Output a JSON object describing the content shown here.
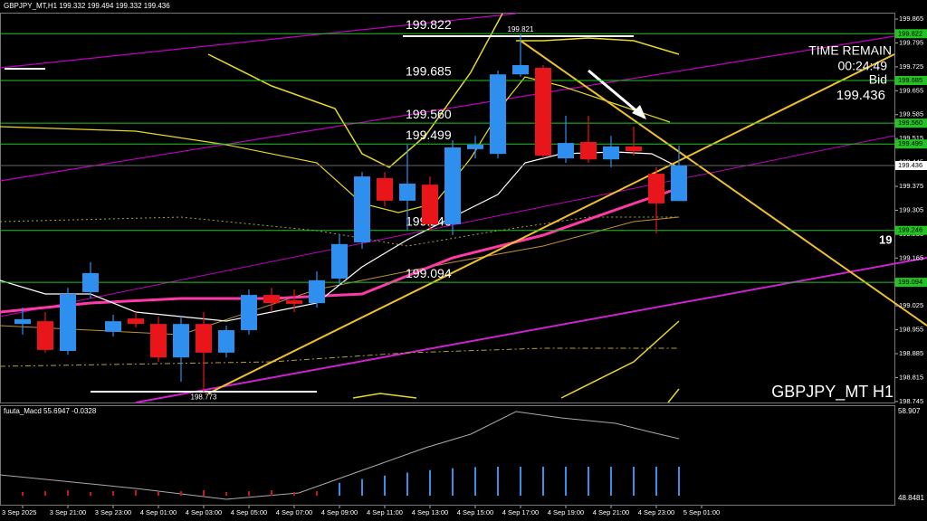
{
  "chart_data": {
    "type": "candlestick",
    "title": "GBPJPY_MT,H1 199.332 199.494 199.332 199.436",
    "watermark": "GBPJPY_MT H1",
    "time_remain_label": "TIME REMAIN",
    "time_remain": "00:24:49",
    "bid_label": "Bid",
    "bid": "199.436",
    "edge_label": "19",
    "high_label": "199.821",
    "low_label": "198.773",
    "indicator_title": "fuuta_Macd 55.6947 -0.0328",
    "indicator_top": "58.907",
    "indicator_bottom": "48.8481",
    "up_color": "#2f8fef",
    "down_color": "#e8151b",
    "level_color": "#22c322",
    "categories": [
      "3 Sep 2025",
      null,
      "3 Sep 21:00",
      null,
      "3 Sep 23:00",
      null,
      "4 Sep 01:00",
      null,
      "4 Sep 03:00",
      null,
      "4 Sep 05:00",
      null,
      "4 Sep 07:00",
      null,
      "4 Sep 09:00",
      null,
      "4 Sep 11:00",
      null,
      "4 Sep 13:00",
      null,
      "4 Sep 15:00",
      null,
      "4 Sep 17:00",
      null,
      "4 Sep 19:00",
      null,
      "4 Sep 21:00",
      null,
      "4 Sep 23:00",
      null,
      "5 Sep 01:00"
    ],
    "open": [
      198.972,
      198.98,
      198.893,
      199.065,
      198.949,
      198.988,
      198.972,
      198.874,
      198.972,
      198.888,
      198.954,
      199.057,
      199.041,
      199.033,
      199.105,
      199.211,
      199.399,
      199.333,
      199.38,
      199.264,
      199.484,
      199.47,
      199.703,
      199.722,
      199.457,
      199.505,
      199.454,
      199.492,
      199.412,
      199.332,
      null
    ],
    "high": [
      199.02,
      199.007,
      199.078,
      199.153,
      198.999,
      199.007,
      198.994,
      198.994,
      199.007,
      198.967,
      199.073,
      199.078,
      199.073,
      199.126,
      199.232,
      199.417,
      199.417,
      199.497,
      199.404,
      199.51,
      199.523,
      199.714,
      199.821,
      199.73,
      199.582,
      199.582,
      199.523,
      199.55,
      199.431,
      199.494,
      null
    ],
    "low": [
      198.941,
      198.888,
      198.882,
      199.047,
      198.935,
      198.962,
      198.861,
      198.803,
      198.773,
      198.874,
      198.941,
      199.007,
      199.007,
      199.02,
      199.086,
      199.192,
      199.317,
      199.245,
      199.245,
      199.232,
      199.457,
      199.457,
      199.696,
      199.457,
      199.444,
      199.444,
      199.431,
      199.465,
      199.237,
      199.332,
      null
    ],
    "close": [
      198.986,
      198.896,
      199.06,
      199.121,
      198.98,
      198.972,
      198.874,
      198.972,
      198.888,
      198.954,
      199.057,
      199.033,
      199.031,
      199.1,
      199.206,
      199.404,
      199.333,
      199.383,
      199.264,
      199.489,
      199.497,
      199.703,
      199.73,
      199.465,
      199.502,
      199.454,
      199.492,
      199.478,
      199.325,
      199.436,
      null
    ],
    "levels": [
      199.822,
      199.685,
      {
        "value": 199.56,
        "label": "199.560"
      },
      199.499,
      199.246,
      199.094
    ],
    "ylim": [
      198.742,
      199.881
    ],
    "yticks": [
      199.865,
      199.795,
      199.725,
      199.655,
      199.585,
      199.515,
      199.445,
      199.375,
      199.305,
      199.235,
      199.165,
      199.095,
      199.025,
      198.955,
      198.885,
      198.815,
      198.745
    ]
  }
}
